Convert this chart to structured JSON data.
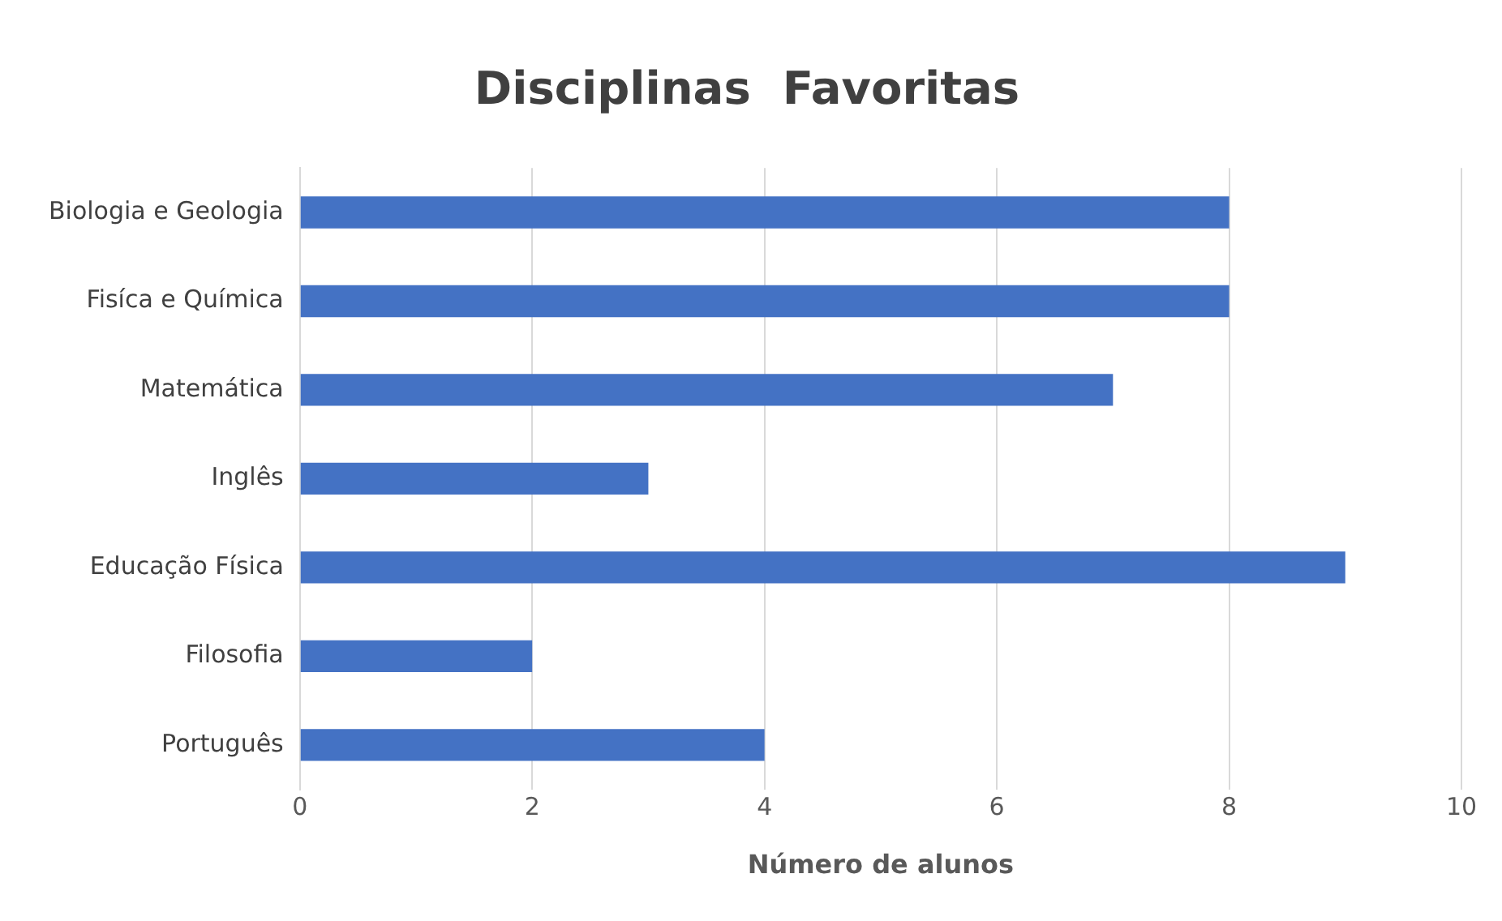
{
  "chart_data": {
    "type": "bar",
    "orientation": "horizontal",
    "title": "Disciplinas  Favoritas",
    "xlabel": "Número de alunos",
    "categories": [
      "Biologia e Geologia",
      "Fisíca e Química",
      "Matemática",
      "Inglês",
      "Educação Física",
      "Filosofia",
      "Português"
    ],
    "values": [
      8,
      8,
      7,
      3,
      9,
      2,
      4
    ],
    "color": "#4472c4",
    "xlim": [
      0,
      10
    ],
    "xticks": [
      0,
      2,
      4,
      6,
      8,
      10
    ],
    "grid": "x"
  }
}
